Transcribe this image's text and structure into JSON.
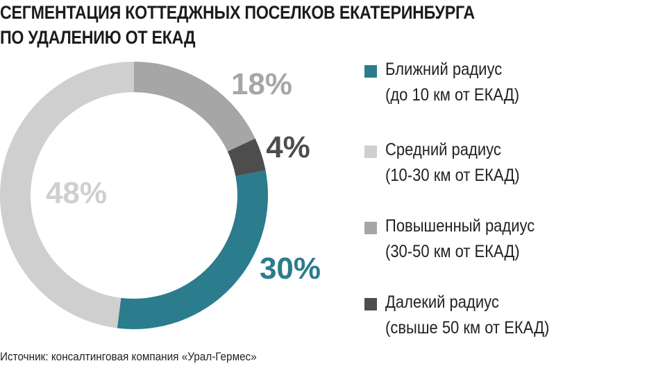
{
  "title": {
    "line1": "СЕГМЕНТАЦИЯ КОТТЕДЖНЫХ ПОСЕЛКОВ ЕКАТЕРИНБУРГА",
    "line2": "ПО УДАЛЕНИЮ ОТ ЕКАД"
  },
  "chart_data": {
    "type": "pie",
    "title": "СЕГМЕНТАЦИЯ КОТТЕДЖНЫХ ПОСЕЛКОВ ЕКАТЕРИНБУРГА ПО УДАЛЕНИЮ ОТ ЕКАД",
    "slices": [
      {
        "key": "near",
        "label": "Ближний радиус",
        "sublabel": "(до 10 км от ЕКАД)",
        "value": 30,
        "display": "30%",
        "color": "#2b7c8c",
        "label_color": "#2b7c8c"
      },
      {
        "key": "middle",
        "label": "Средний радиус",
        "sublabel": "(10-30 км от ЕКАД)",
        "value": 48,
        "display": "48%",
        "color": "#cfcfcf",
        "label_color": "#cfcfcf"
      },
      {
        "key": "elevated",
        "label": "Повышенный радиус",
        "sublabel": "(30-50 км от ЕКАД)",
        "value": 18,
        "display": "18%",
        "color": "#a6a6a6",
        "label_color": "#a6a6a6"
      },
      {
        "key": "far",
        "label": "Далекий радиус",
        "sublabel": "(свыше 50 км от ЕКАД)",
        "value": 4,
        "display": "4%",
        "color": "#4d4d4d",
        "label_color": "#4d4d4d"
      }
    ],
    "legend_position": "right"
  },
  "source": "Источник: консалтинговая компания «Урал-Гермес»"
}
